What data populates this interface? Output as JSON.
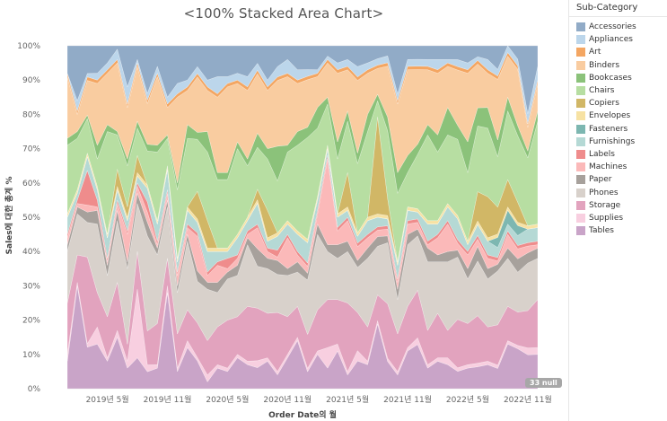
{
  "chart_data": {
    "type": "area",
    "stacking": "percent",
    "title": "<100% Stacked Area Chart>",
    "xlabel": "Order Date의 월",
    "ylabel": "Sales에 대한 총계 %",
    "ylim": [
      0,
      100
    ],
    "yticks": [
      "0%",
      "10%",
      "20%",
      "30%",
      "40%",
      "50%",
      "60%",
      "70%",
      "80%",
      "90%",
      "100%"
    ],
    "x_tick_labels": [
      "2019년 5월",
      "2019년 11월",
      "2020년 5월",
      "2020년 11월",
      "2021년 5월",
      "2021년 11월",
      "2022년 5월",
      "2022년 11월"
    ],
    "x_tick_months": [
      4,
      10,
      16,
      22,
      28,
      34,
      40,
      46
    ],
    "x": [
      "2019-01",
      "2019-02",
      "2019-03",
      "2019-04",
      "2019-05",
      "2019-06",
      "2019-07",
      "2019-08",
      "2019-09",
      "2019-10",
      "2019-11",
      "2019-12",
      "2020-01",
      "2020-02",
      "2020-03",
      "2020-04",
      "2020-05",
      "2020-06",
      "2020-07",
      "2020-08",
      "2020-09",
      "2020-10",
      "2020-11",
      "2020-12",
      "2021-01",
      "2021-02",
      "2021-03",
      "2021-04",
      "2021-05",
      "2021-06",
      "2021-07",
      "2021-08",
      "2021-09",
      "2021-10",
      "2021-11",
      "2021-12",
      "2022-01",
      "2022-02",
      "2022-03",
      "2022-04",
      "2022-05",
      "2022-06",
      "2022-07",
      "2022-08",
      "2022-09",
      "2022-10",
      "2022-11",
      "2022-12"
    ],
    "legend_position": "right",
    "legend_title": "Sub-Category",
    "series": [
      {
        "name": "Tables",
        "color": "#c9a4c8",
        "values": [
          8,
          30,
          12,
          13,
          8,
          15,
          6,
          9,
          5,
          6,
          28,
          5,
          12,
          8,
          2,
          6,
          5,
          9,
          7,
          6,
          8,
          4,
          9,
          14,
          5,
          10,
          6,
          11,
          4,
          8,
          7,
          20,
          8,
          4,
          11,
          13,
          6,
          8,
          7,
          5,
          6,
          6,
          7,
          6,
          13,
          12,
          10,
          10
        ]
      },
      {
        "name": "Supplies",
        "color": "#f8cfe0",
        "values": [
          2,
          1,
          1,
          5,
          1,
          2,
          2,
          20,
          2,
          1,
          2,
          1,
          2,
          1,
          2,
          1,
          1,
          1,
          1,
          2,
          1,
          1,
          1,
          1,
          1,
          1,
          6,
          2,
          1,
          3,
          1,
          1,
          1,
          1,
          1,
          2,
          1,
          1,
          2,
          1,
          1,
          1,
          1,
          1,
          1,
          1,
          2,
          2
        ]
      },
      {
        "name": "Storage",
        "color": "#e2a3be",
        "values": [
          15,
          8,
          25,
          10,
          12,
          14,
          5,
          11,
          10,
          12,
          8,
          10,
          9,
          10,
          10,
          11,
          14,
          11,
          16,
          15,
          13,
          17,
          11,
          9,
          10,
          12,
          14,
          13,
          20,
          11,
          10,
          8,
          16,
          11,
          12,
          14,
          10,
          13,
          8,
          14,
          12,
          13,
          10,
          12,
          10,
          10,
          11,
          14
        ]
      },
      {
        "name": "Phones",
        "color": "#d8d1cb",
        "values": [
          15,
          12,
          10,
          20,
          12,
          18,
          22,
          14,
          28,
          20,
          15,
          12,
          20,
          12,
          15,
          10,
          12,
          12,
          18,
          12,
          13,
          11,
          12,
          10,
          16,
          22,
          14,
          12,
          15,
          13,
          20,
          15,
          18,
          10,
          18,
          16,
          20,
          15,
          20,
          18,
          13,
          15,
          14,
          16,
          14,
          12,
          14,
          12
        ]
      },
      {
        "name": "Paper",
        "color": "#a7a19c",
        "values": [
          2,
          2,
          3,
          4,
          3,
          3,
          2,
          3,
          4,
          2,
          2,
          2,
          2,
          3,
          2,
          3,
          2,
          3,
          2,
          5,
          3,
          4,
          2,
          3,
          2,
          3,
          2,
          4,
          3,
          2,
          3,
          3,
          2,
          3,
          3,
          2,
          4,
          2,
          3,
          2,
          3,
          4,
          3,
          2,
          3,
          4,
          3,
          3
        ]
      },
      {
        "name": "Machines",
        "color": "#fbb9b9",
        "values": [
          2,
          1,
          2,
          1,
          1,
          2,
          8,
          2,
          3,
          1,
          2,
          3,
          2,
          10,
          2,
          5,
          1,
          2,
          1,
          6,
          2,
          1,
          9,
          2,
          2,
          3,
          25,
          4,
          6,
          4,
          3,
          2,
          2,
          2,
          3,
          2,
          1,
          5,
          8,
          2,
          4,
          2,
          3,
          1,
          4,
          3,
          2,
          1
        ]
      },
      {
        "name": "Labels",
        "color": "#ef8c8c",
        "values": [
          1,
          1,
          10,
          2,
          1,
          1,
          1,
          1,
          3,
          1,
          1,
          1,
          1,
          1,
          1,
          1,
          3,
          1,
          1,
          1,
          1,
          2,
          1,
          1,
          1,
          1,
          1,
          1,
          1,
          1,
          1,
          1,
          1,
          1,
          1,
          1,
          1,
          1,
          1,
          1,
          1,
          1,
          1,
          1,
          1,
          1,
          1,
          1
        ]
      },
      {
        "name": "Furnishings",
        "color": "#b5d9d5",
        "values": [
          5,
          2,
          4,
          3,
          6,
          3,
          3,
          2,
          4,
          5,
          6,
          3,
          4,
          3,
          6,
          3,
          2,
          5,
          3,
          6,
          2,
          4,
          3,
          5,
          6,
          3,
          2,
          3,
          2,
          2,
          4,
          3,
          2,
          4,
          3,
          2,
          5,
          3,
          4,
          6,
          2,
          3,
          4,
          3,
          2,
          3,
          4,
          4
        ]
      },
      {
        "name": "Fasteners",
        "color": "#7db7b1",
        "values": [
          0,
          0,
          0,
          0,
          0,
          0,
          0,
          0,
          0,
          0,
          0,
          0,
          0,
          0,
          0,
          0,
          0,
          0,
          0,
          0,
          0,
          0,
          0,
          0,
          0,
          0,
          0,
          0,
          0,
          0,
          0,
          0,
          0,
          0,
          0,
          0,
          0,
          0,
          0,
          0,
          0,
          0,
          0,
          3,
          4,
          3,
          0,
          0
        ]
      },
      {
        "name": "Envelopes",
        "color": "#f7e2a3",
        "values": [
          1,
          1,
          1,
          1,
          1,
          1,
          1,
          1,
          1,
          1,
          1,
          1,
          1,
          1,
          1,
          1,
          1,
          1,
          1,
          1,
          1,
          1,
          1,
          1,
          1,
          1,
          1,
          1,
          1,
          1,
          1,
          1,
          1,
          1,
          1,
          1,
          1,
          1,
          1,
          1,
          1,
          1,
          1,
          1,
          1,
          1,
          1,
          1
        ]
      },
      {
        "name": "Copiers",
        "color": "#d1b766",
        "values": [
          0,
          0,
          0,
          0,
          0,
          5,
          3,
          5,
          0,
          0,
          0,
          0,
          0,
          8,
          8,
          0,
          0,
          0,
          0,
          3,
          8,
          0,
          0,
          0,
          0,
          0,
          0,
          0,
          10,
          0,
          0,
          30,
          5,
          0,
          0,
          0,
          0,
          0,
          0,
          0,
          0,
          8,
          12,
          8,
          8,
          6,
          0,
          0
        ]
      },
      {
        "name": "Chairs",
        "color": "#b7dea2",
        "values": [
          20,
          15,
          10,
          8,
          30,
          10,
          12,
          8,
          10,
          20,
          8,
          20,
          20,
          15,
          20,
          20,
          20,
          25,
          15,
          12,
          15,
          15,
          20,
          25,
          30,
          20,
          12,
          16,
          15,
          20,
          25,
          5,
          20,
          20,
          10,
          16,
          25,
          20,
          20,
          22,
          20,
          18,
          20,
          15,
          20,
          20,
          20,
          30
        ]
      },
      {
        "name": "Bookcases",
        "color": "#8bc27a",
        "values": [
          2,
          2,
          1,
          4,
          2,
          1,
          2,
          2,
          2,
          2,
          1,
          2,
          4,
          2,
          6,
          2,
          2,
          2,
          2,
          4,
          3,
          10,
          2,
          4,
          3,
          6,
          2,
          5,
          3,
          3,
          5,
          2,
          4,
          6,
          5,
          3,
          3,
          5,
          8,
          4,
          9,
          5,
          6,
          5,
          4,
          3,
          2,
          3
        ]
      },
      {
        "name": "Binders",
        "color": "#f9cca0",
        "values": [
          18,
          5,
          10,
          18,
          15,
          20,
          15,
          16,
          12,
          20,
          8,
          25,
          10,
          16,
          12,
          22,
          25,
          17,
          20,
          17,
          17,
          19,
          20,
          14,
          14,
          9,
          10,
          20,
          12,
          21,
          12,
          8,
          15,
          20,
          25,
          22,
          16,
          18,
          12,
          16,
          20,
          12,
          10,
          18,
          12,
          17,
          7,
          8
        ]
      },
      {
        "name": "Art",
        "color": "#f4a662",
        "values": [
          1,
          1,
          1,
          1,
          1,
          1,
          1,
          1,
          1,
          1,
          1,
          1,
          1,
          1,
          1,
          1,
          1,
          1,
          1,
          1,
          1,
          1,
          1,
          1,
          1,
          1,
          1,
          1,
          1,
          1,
          1,
          1,
          1,
          1,
          1,
          1,
          1,
          1,
          1,
          1,
          1,
          1,
          1,
          1,
          1,
          1,
          1,
          1
        ]
      },
      {
        "name": "Appliances",
        "color": "#bcd6eb",
        "values": [
          0,
          3,
          1,
          2,
          2,
          3,
          5,
          1,
          2,
          2,
          2,
          3,
          2,
          2,
          2,
          5,
          2,
          2,
          3,
          2,
          2,
          3,
          4,
          3,
          2,
          1,
          1,
          2,
          2,
          3,
          2,
          2,
          2,
          2,
          2,
          2,
          2,
          3,
          1,
          2,
          2,
          1,
          3,
          2,
          2,
          2,
          3,
          4
        ]
      },
      {
        "name": "Accessories",
        "color": "#91abc7",
        "values": [
          8,
          16,
          8,
          8,
          5,
          1,
          12,
          4,
          14,
          6,
          15,
          11,
          10,
          6,
          10,
          9,
          9,
          8,
          9,
          5,
          10,
          6,
          4,
          7,
          7,
          7,
          3,
          5,
          4,
          6,
          5,
          4,
          3,
          14,
          4,
          4,
          4,
          4,
          4,
          4,
          5,
          3,
          4,
          7,
          0,
          4,
          20,
          6
        ]
      }
    ]
  },
  "null_badge": "33 null"
}
